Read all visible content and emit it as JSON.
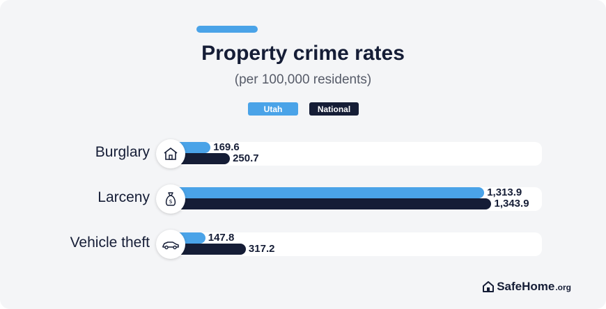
{
  "chart_data": {
    "type": "bar",
    "orientation": "horizontal",
    "title": "Property crime rates",
    "subtitle": "(per 100,000 residents)",
    "categories": [
      "Burglary",
      "Larceny",
      "Vehicle theft"
    ],
    "category_icons": [
      "house-icon",
      "money-bag-icon",
      "car-icon"
    ],
    "series": [
      {
        "name": "Utah",
        "color": "#4aa3e8",
        "values": [
          169.6,
          1313.9,
          147.8
        ],
        "labels": [
          "169.6",
          "1,313.9",
          "147.8"
        ]
      },
      {
        "name": "National",
        "color": "#151d36",
        "values": [
          250.7,
          1343.9,
          317.2
        ],
        "labels": [
          "250.7",
          "1,343.9",
          "317.2"
        ]
      }
    ],
    "xlim": [
      0,
      1500
    ],
    "grid": false,
    "legend_position": "top-center"
  },
  "brand": {
    "name": "SafeHome",
    "tld": ".org"
  }
}
